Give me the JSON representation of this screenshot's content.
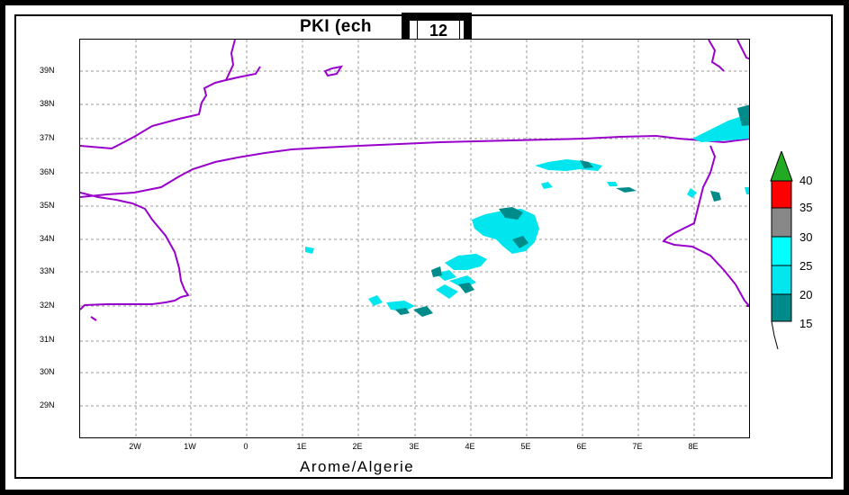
{
  "title": "PKI (ech",
  "title_suffix": ")",
  "highlight_value": "12",
  "x_axis_title": "Arome/Algerie",
  "y_labels": [
    "39N",
    "38N",
    "37N",
    "36N",
    "35N",
    "34N",
    "33N",
    "32N",
    "31N",
    "30N",
    "29N"
  ],
  "x_labels": [
    "2W",
    "1W",
    "0",
    "1E",
    "2E",
    "3E",
    "4E",
    "5E",
    "6E",
    "7E",
    "8E"
  ],
  "legend": {
    "labels": [
      "40",
      "35",
      "30",
      "25",
      "20",
      "15"
    ],
    "colors": {
      "arrow": "#22aa22",
      "band_35_40": "#ff0000",
      "band_30_35": "#888888",
      "band_25_30": "#00ffff",
      "band_20_25": "#00e5ee",
      "band_15_20": "#008b8b"
    }
  },
  "map_colors": {
    "coastline": "#9900cc",
    "grid": "#999999",
    "precip_light": "#00e5ee",
    "precip_dark": "#008b8b"
  }
}
